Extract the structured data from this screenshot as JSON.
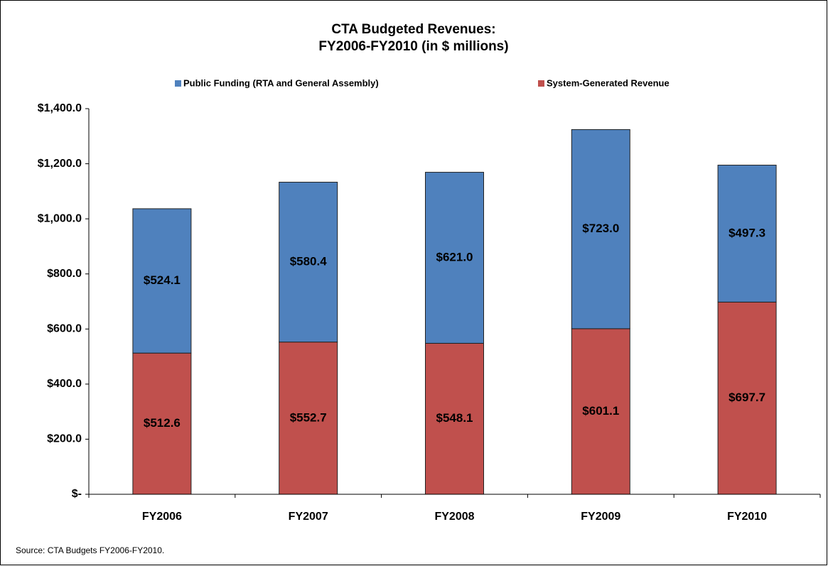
{
  "chart_data": {
    "type": "stacked_bar",
    "title": [
      "CTA Budgeted Revenues:",
      "FY2006-FY2010 (in $ millions)"
    ],
    "categories": [
      "FY2006",
      "FY2007",
      "FY2008",
      "FY2009",
      "FY2010"
    ],
    "series": [
      {
        "name": "Public Funding (RTA and General Assembly)",
        "color": "#4f81bd",
        "values": [
          524.1,
          580.4,
          621.0,
          723.0,
          497.3
        ],
        "value_labels": [
          "$524.1",
          "$580.4",
          "$621.0",
          "$723.0",
          "$497.3"
        ]
      },
      {
        "name": "System-Generated  Revenue",
        "color": "#c0504d",
        "values": [
          512.6,
          552.7,
          548.1,
          601.1,
          697.7
        ],
        "value_labels": [
          "$512.6",
          "$552.7",
          "$548.1",
          "$601.1",
          "$697.7"
        ]
      }
    ],
    "ylim": [
      0,
      1400
    ],
    "yticks": [
      {
        "value": 0,
        "label": "$-"
      },
      {
        "value": 200,
        "label": "$200.0"
      },
      {
        "value": 400,
        "label": "$400.0"
      },
      {
        "value": 600,
        "label": "$600.0"
      },
      {
        "value": 800,
        "label": "$800.0"
      },
      {
        "value": 1000,
        "label": "$1,000.0"
      },
      {
        "value": 1200,
        "label": "$1,200.0"
      },
      {
        "value": 1400,
        "label": "$1,400.0"
      }
    ],
    "grid": false,
    "legend": "top",
    "source": "Source: CTA Budgets FY2006-FY2010."
  }
}
